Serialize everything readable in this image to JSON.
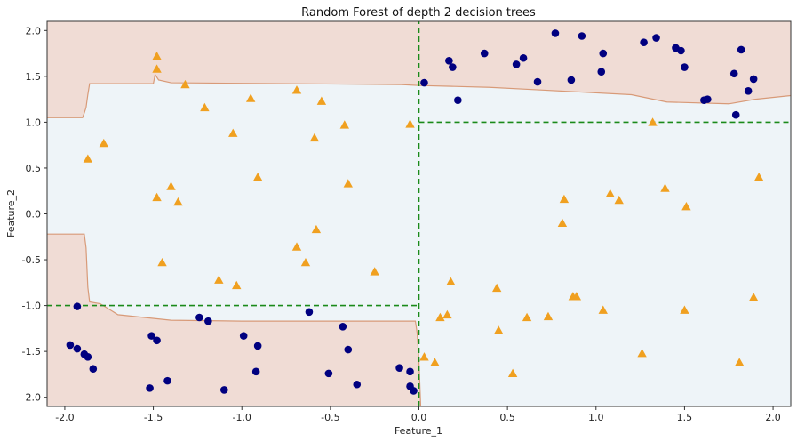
{
  "chart_data": {
    "type": "scatter",
    "title": "Random Forest of depth 2 decision trees",
    "xlabel": "Feature_1",
    "ylabel": "Feature_2",
    "xlim": [
      -2.1,
      2.1
    ],
    "ylim": [
      -2.1,
      2.1
    ],
    "xticks": [
      "-2.0",
      "-1.5",
      "-1.0",
      "-0.5",
      "0.0",
      "0.5",
      "1.0",
      "1.5",
      "2.0"
    ],
    "yticks": [
      "-2.0",
      "-1.5",
      "-1.0",
      "-0.5",
      "0.0",
      "0.5",
      "1.0",
      "1.5",
      "2.0"
    ],
    "grid": false,
    "colors": {
      "region_class_0": "#f0dcd5",
      "region_class_1": "#eef4f8",
      "boundary": "#d89a78",
      "split_lines": "#1a8a1a",
      "class_0_marker": "#000080",
      "class_1_marker": "#f0a020"
    },
    "decision_boundary_upper": [
      [
        -2.1,
        1.05
      ],
      [
        -1.9,
        1.05
      ],
      [
        -1.89,
        1.1
      ],
      [
        -1.88,
        1.16
      ],
      [
        -1.87,
        1.3
      ],
      [
        -1.86,
        1.42
      ],
      [
        -1.5,
        1.42
      ],
      [
        -1.49,
        1.52
      ],
      [
        -1.47,
        1.46
      ],
      [
        -1.4,
        1.43
      ],
      [
        -0.1,
        1.41
      ],
      [
        0.0,
        1.4
      ],
      [
        0.2,
        1.39
      ],
      [
        0.4,
        1.38
      ],
      [
        0.7,
        1.35
      ],
      [
        1.2,
        1.3
      ],
      [
        1.4,
        1.22
      ],
      [
        1.75,
        1.2
      ],
      [
        1.9,
        1.25
      ],
      [
        2.1,
        1.29
      ]
    ],
    "decision_boundary_lower": [
      [
        -2.1,
        -0.22
      ],
      [
        -1.89,
        -0.22
      ],
      [
        -1.88,
        -0.37
      ],
      [
        -1.87,
        -0.8
      ],
      [
        -1.86,
        -0.96
      ],
      [
        -1.8,
        -0.98
      ],
      [
        -1.7,
        -1.1
      ],
      [
        -1.4,
        -1.16
      ],
      [
        -1.0,
        -1.17
      ],
      [
        -0.2,
        -1.17
      ],
      [
        -0.02,
        -1.17
      ],
      [
        -0.01,
        -1.3
      ],
      [
        0.0,
        -1.6
      ],
      [
        0.01,
        -2.1
      ]
    ],
    "splits": [
      {
        "axis": "x",
        "value": 0.0,
        "from": -2.1,
        "to": 2.1
      },
      {
        "axis": "y",
        "value": 1.0,
        "from": 0.0,
        "to": 2.1
      },
      {
        "axis": "y",
        "value": -1.0,
        "from": -2.1,
        "to": 0.0
      }
    ],
    "series": [
      {
        "class": 0,
        "marker": "circle",
        "points": [
          [
            0.03,
            1.43
          ],
          [
            0.17,
            1.67
          ],
          [
            0.19,
            1.6
          ],
          [
            0.22,
            1.24
          ],
          [
            0.37,
            1.75
          ],
          [
            0.55,
            1.63
          ],
          [
            0.59,
            1.7
          ],
          [
            0.67,
            1.44
          ],
          [
            0.77,
            1.97
          ],
          [
            0.86,
            1.46
          ],
          [
            0.92,
            1.94
          ],
          [
            1.03,
            1.55
          ],
          [
            1.04,
            1.75
          ],
          [
            1.27,
            1.87
          ],
          [
            1.34,
            1.92
          ],
          [
            1.45,
            1.81
          ],
          [
            1.48,
            1.78
          ],
          [
            1.5,
            1.6
          ],
          [
            1.61,
            1.24
          ],
          [
            1.63,
            1.25
          ],
          [
            1.78,
            1.53
          ],
          [
            1.79,
            1.08
          ],
          [
            1.82,
            1.79
          ],
          [
            1.86,
            1.34
          ],
          [
            1.89,
            1.47
          ],
          [
            -1.93,
            -1.01
          ],
          [
            -1.97,
            -1.43
          ],
          [
            -1.93,
            -1.47
          ],
          [
            -1.89,
            -1.53
          ],
          [
            -1.87,
            -1.56
          ],
          [
            -1.84,
            -1.69
          ],
          [
            -1.51,
            -1.33
          ],
          [
            -1.48,
            -1.38
          ],
          [
            -1.52,
            -1.9
          ],
          [
            -1.42,
            -1.82
          ],
          [
            -1.24,
            -1.13
          ],
          [
            -1.19,
            -1.17
          ],
          [
            -1.1,
            -1.92
          ],
          [
            -0.99,
            -1.33
          ],
          [
            -0.91,
            -1.44
          ],
          [
            -0.92,
            -1.72
          ],
          [
            -0.62,
            -1.07
          ],
          [
            -0.51,
            -1.74
          ],
          [
            -0.43,
            -1.23
          ],
          [
            -0.4,
            -1.48
          ],
          [
            -0.35,
            -1.86
          ],
          [
            -0.11,
            -1.68
          ],
          [
            -0.05,
            -1.88
          ],
          [
            -0.05,
            -1.72
          ],
          [
            -0.03,
            -1.93
          ]
        ]
      },
      {
        "class": 1,
        "marker": "triangle",
        "points": [
          [
            -1.48,
            1.72
          ],
          [
            -1.48,
            1.58
          ],
          [
            -1.32,
            1.41
          ],
          [
            -1.21,
            1.16
          ],
          [
            -1.05,
            0.88
          ],
          [
            -0.95,
            1.26
          ],
          [
            -0.91,
            0.4
          ],
          [
            -0.69,
            1.35
          ],
          [
            -0.59,
            0.83
          ],
          [
            -0.55,
            1.23
          ],
          [
            -0.42,
            0.97
          ],
          [
            -0.4,
            0.33
          ],
          [
            -0.05,
            0.98
          ],
          [
            -1.78,
            0.77
          ],
          [
            -1.87,
            0.6
          ],
          [
            -1.48,
            0.18
          ],
          [
            -1.4,
            0.3
          ],
          [
            -1.36,
            0.13
          ],
          [
            -1.45,
            -0.53
          ],
          [
            -0.58,
            -0.17
          ],
          [
            -0.69,
            -0.36
          ],
          [
            -0.64,
            -0.53
          ],
          [
            -1.13,
            -0.72
          ],
          [
            -1.03,
            -0.78
          ],
          [
            -0.25,
            -0.63
          ],
          [
            1.32,
            1.0
          ],
          [
            0.82,
            0.16
          ],
          [
            1.08,
            0.22
          ],
          [
            1.13,
            0.15
          ],
          [
            1.39,
            0.28
          ],
          [
            1.51,
            0.08
          ],
          [
            1.92,
            0.4
          ],
          [
            0.81,
            -0.1
          ],
          [
            0.18,
            -0.74
          ],
          [
            0.44,
            -0.81
          ],
          [
            0.16,
            -1.1
          ],
          [
            0.12,
            -1.13
          ],
          [
            0.61,
            -1.13
          ],
          [
            0.73,
            -1.12
          ],
          [
            0.87,
            -0.9
          ],
          [
            0.89,
            -0.9
          ],
          [
            1.04,
            -1.05
          ],
          [
            1.5,
            -1.05
          ],
          [
            1.89,
            -0.91
          ],
          [
            0.45,
            -1.27
          ],
          [
            1.26,
            -1.52
          ],
          [
            0.03,
            -1.56
          ],
          [
            0.09,
            -1.62
          ],
          [
            0.53,
            -1.74
          ],
          [
            1.81,
            -1.62
          ]
        ]
      }
    ]
  }
}
